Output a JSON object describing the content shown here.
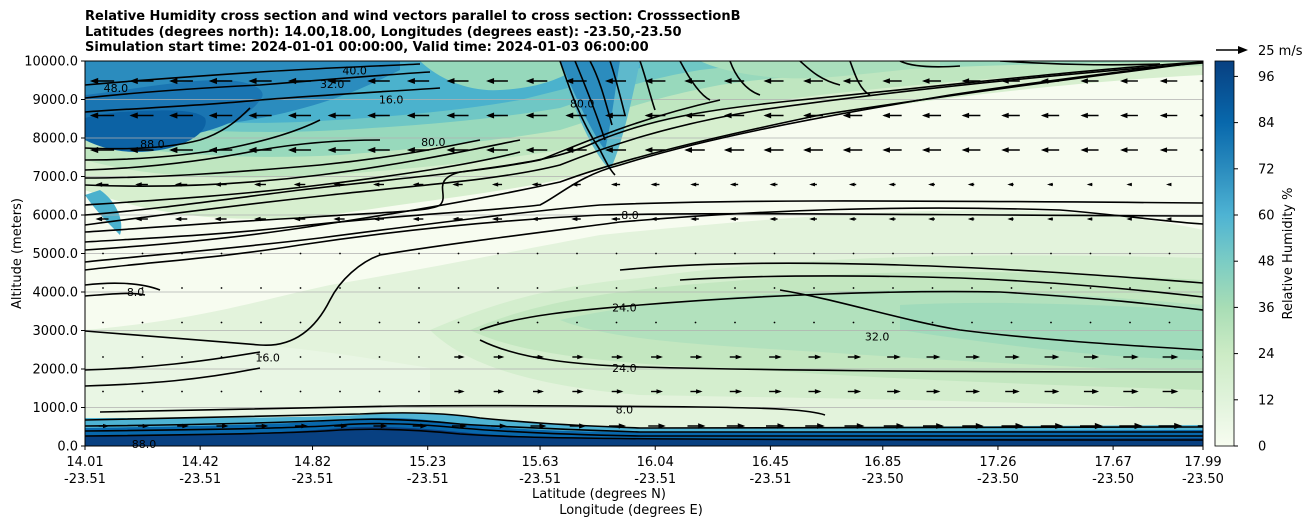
{
  "chart_data": {
    "type": "contour",
    "title_lines": [
      "Relative Humidity cross section and wind vectors parallel to cross section: CrosssectionB",
      "Latitudes (degrees north): 14.00,18.00, Longitudes (degrees east): -23.50,-23.50",
      "Simulation start time: 2024-01-01 00:00:00, Valid time: 2024-01-03 06:00:00"
    ],
    "ylabel": "Altitude (meters)",
    "xlabel_lat": "Latitude (degrees N)",
    "xlabel_lon": "Longitude (degrees E)",
    "ylim": [
      0,
      10000
    ],
    "y_ticks": [
      "0.0",
      "1000.0",
      "2000.0",
      "3000.0",
      "4000.0",
      "5000.0",
      "6000.0",
      "7000.0",
      "8000.0",
      "9000.0",
      "10000.0"
    ],
    "y_tick_values": [
      0,
      1000,
      2000,
      3000,
      4000,
      5000,
      6000,
      7000,
      8000,
      9000,
      10000
    ],
    "xlim": [
      14.01,
      17.99
    ],
    "x_ticks": [
      {
        "lat": "14.01",
        "lon": "-23.51",
        "value": 14.01
      },
      {
        "lat": "14.42",
        "lon": "-23.51",
        "value": 14.42
      },
      {
        "lat": "14.82",
        "lon": "-23.51",
        "value": 14.82
      },
      {
        "lat": "15.23",
        "lon": "-23.51",
        "value": 15.23
      },
      {
        "lat": "15.63",
        "lon": "-23.51",
        "value": 15.63
      },
      {
        "lat": "16.04",
        "lon": "-23.51",
        "value": 16.04
      },
      {
        "lat": "16.45",
        "lon": "-23.51",
        "value": 16.45
      },
      {
        "lat": "16.85",
        "lon": "-23.50",
        "value": 16.85
      },
      {
        "lat": "17.26",
        "lon": "-23.50",
        "value": 17.26
      },
      {
        "lat": "17.67",
        "lon": "-23.50",
        "value": 17.67
      },
      {
        "lat": "17.99",
        "lon": "-23.50",
        "value": 17.99
      }
    ],
    "grid": "horizontal",
    "colorbar": {
      "label": "Relative Humidity %",
      "ticks": [
        "0",
        "12",
        "24",
        "36",
        "48",
        "60",
        "72",
        "84",
        "96"
      ],
      "tick_values": [
        0,
        12,
        24,
        36,
        48,
        60,
        72,
        84,
        96
      ],
      "max": 100,
      "colormap": "GnBu"
    },
    "quiver_key": "25 m/s",
    "contour_labels": [
      {
        "text": "88.0",
        "x": 14.25,
        "y": 7850
      },
      {
        "text": "8.0",
        "x": 14.19,
        "y": 4000
      },
      {
        "text": "16.0",
        "x": 14.66,
        "y": 2300
      },
      {
        "text": "8.0",
        "x": 15.95,
        "y": 6000
      },
      {
        "text": "24.0",
        "x": 15.93,
        "y": 3600
      },
      {
        "text": "24.0",
        "x": 15.93,
        "y": 2030
      },
      {
        "text": "32.0",
        "x": 16.83,
        "y": 2850
      },
      {
        "text": "8.0",
        "x": 15.93,
        "y": 950
      },
      {
        "text": "80.0",
        "x": 15.25,
        "y": 7900
      },
      {
        "text": "80.0",
        "x": 15.78,
        "y": 8900
      },
      {
        "text": "32.0",
        "x": 14.89,
        "y": 9400
      },
      {
        "text": "16.0",
        "x": 15.1,
        "y": 9000
      },
      {
        "text": "40.0",
        "x": 14.97,
        "y": 9750
      },
      {
        "text": "48.0",
        "x": 14.12,
        "y": 9300
      },
      {
        "text": "88.0",
        "x": 14.22,
        "y": 50
      }
    ]
  },
  "colors": {
    "rh_levels": [
      "#f7fcf0",
      "#eef9ea",
      "#e5f5e0",
      "#dcf1d5",
      "#d3eecd",
      "#c8e9c2",
      "#bde5bf",
      "#aadfbc",
      "#96d8bb",
      "#83d0c0",
      "#6ec6c5",
      "#5ab9cb",
      "#47abcf",
      "#3599cc",
      "#2588c0",
      "#1477b4",
      "#0866aa",
      "#08589e",
      "#084b8d",
      "#08407f"
    ],
    "contour": "#000000",
    "arrow": "#000000",
    "gridline": "#b0b0b0"
  }
}
